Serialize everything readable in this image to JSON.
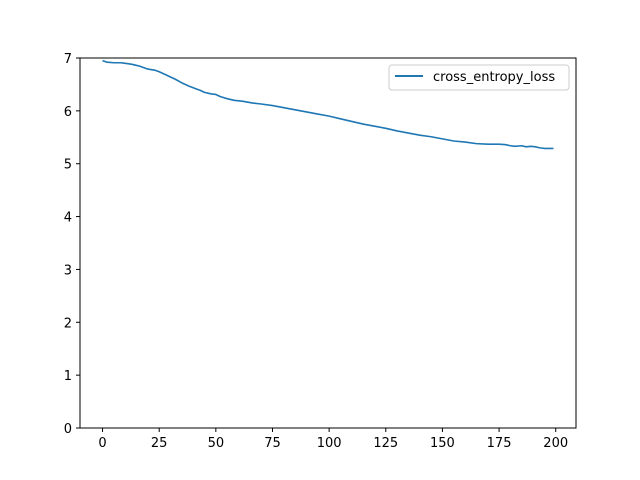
{
  "chart_data": {
    "type": "line",
    "title": "",
    "xlabel": "",
    "ylabel": "",
    "xlim": [
      -9.95,
      208.95
    ],
    "ylim": [
      0,
      7
    ],
    "grid": false,
    "legend_position": "top-right",
    "x_ticks": [
      0,
      25,
      50,
      75,
      100,
      125,
      150,
      175,
      200
    ],
    "y_ticks": [
      0,
      1,
      2,
      3,
      4,
      5,
      6,
      7
    ],
    "series": [
      {
        "name": "cross_entropy_loss",
        "color": "#1f77b4",
        "x": [
          0,
          2,
          5,
          8,
          10,
          13,
          16,
          18,
          20,
          23,
          25,
          28,
          32,
          35,
          38,
          41,
          43,
          45,
          48,
          50,
          52,
          55,
          58,
          62,
          66,
          70,
          75,
          80,
          85,
          90,
          95,
          100,
          105,
          110,
          115,
          120,
          125,
          130,
          135,
          140,
          145,
          150,
          155,
          160,
          165,
          170,
          175,
          178,
          180,
          182,
          185,
          187,
          189,
          191,
          193,
          195,
          197,
          199
        ],
        "y": [
          6.95,
          6.92,
          6.91,
          6.91,
          6.9,
          6.88,
          6.85,
          6.82,
          6.79,
          6.77,
          6.74,
          6.68,
          6.6,
          6.53,
          6.47,
          6.42,
          6.39,
          6.35,
          6.32,
          6.31,
          6.27,
          6.23,
          6.2,
          6.18,
          6.15,
          6.13,
          6.1,
          6.06,
          6.02,
          5.98,
          5.94,
          5.9,
          5.85,
          5.8,
          5.75,
          5.71,
          5.67,
          5.62,
          5.58,
          5.54,
          5.51,
          5.47,
          5.43,
          5.41,
          5.38,
          5.37,
          5.37,
          5.36,
          5.34,
          5.33,
          5.34,
          5.32,
          5.33,
          5.32,
          5.3,
          5.29,
          5.29,
          5.29
        ]
      }
    ]
  }
}
